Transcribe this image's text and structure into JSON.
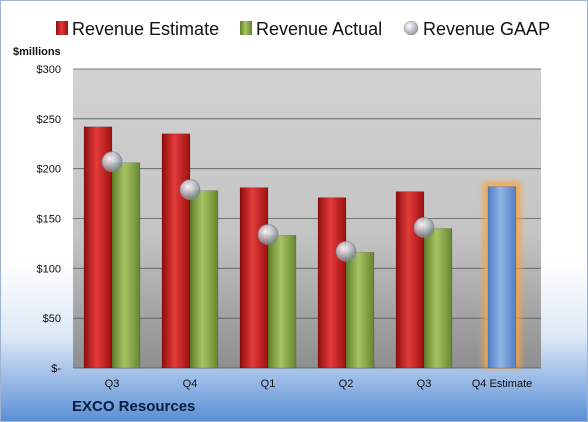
{
  "company": "EXCO Resources",
  "chart_data": {
    "type": "bar",
    "ylabel": "$millions",
    "categories": [
      "Q3",
      "Q4",
      "Q1",
      "Q2",
      "Q3",
      "Q4 Estimate"
    ],
    "series": [
      {
        "name": "Revenue Estimate",
        "values": [
          242,
          235,
          181,
          171,
          177,
          null
        ],
        "color": "#cc1f1f"
      },
      {
        "name": "Revenue Actual",
        "values": [
          206,
          178,
          133,
          116,
          140,
          null
        ],
        "color": "#8cab4c"
      },
      {
        "name": "Revenue GAAP",
        "values": [
          207,
          179,
          134,
          117,
          141,
          null
        ],
        "color": "#b8bfca"
      }
    ],
    "forecast": {
      "category": "Q4 Estimate",
      "value": 182,
      "color": "#6f9ad8",
      "glow": "#f5a64a"
    },
    "ylim": [
      0,
      300
    ],
    "yticks": [
      {
        "value": 0,
        "label": "$-"
      },
      {
        "value": 50,
        "label": "$50"
      },
      {
        "value": 100,
        "label": "$100"
      },
      {
        "value": 150,
        "label": "$150"
      },
      {
        "value": 200,
        "label": "$200"
      },
      {
        "value": 250,
        "label": "$250"
      },
      {
        "value": 300,
        "label": "$300"
      }
    ],
    "grid": true,
    "legend": "top"
  }
}
